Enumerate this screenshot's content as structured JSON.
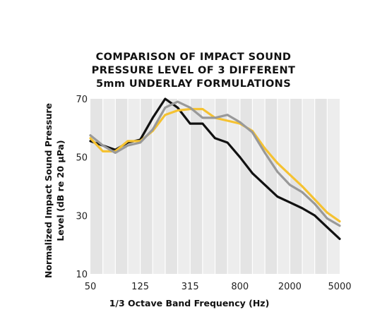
{
  "chart_data": {
    "type": "line",
    "title_lines": [
      "COMPARISON OF IMPACT SOUND",
      "PRESSURE LEVEL OF 3 DIFFERENT",
      "5mm UNDERLAY FORMULATIONS"
    ],
    "xlabel": "1/3 Octave Band Frequency (Hz)",
    "ylabel_lines": [
      "Normalized Impact Sound Pressure",
      "Level (dB re 20 μPa)"
    ],
    "x": [
      50,
      63,
      80,
      100,
      125,
      160,
      200,
      250,
      315,
      400,
      500,
      630,
      800,
      1000,
      1250,
      1600,
      2000,
      2500,
      3150,
      4000,
      5000
    ],
    "x_ticks": [
      "50",
      "125",
      "315",
      "800",
      "2000",
      "5000"
    ],
    "y_ticks": [
      10,
      30,
      50,
      70
    ],
    "ylim": [
      10,
      70
    ],
    "x_scale": "log (1/3 octave bands)",
    "grid": "vertical bands",
    "series": [
      {
        "color": "#111111",
        "values": [
          55.5,
          54,
          52.5,
          55,
          56,
          63.5,
          70,
          67,
          61.5,
          61.5,
          56.5,
          55,
          50,
          44.5,
          40.5,
          36.5,
          34.5,
          32.5,
          30,
          26,
          22
        ]
      },
      {
        "color": "#f5c231",
        "values": [
          56.5,
          52,
          52,
          55.5,
          55.5,
          59,
          64.5,
          66,
          66.5,
          66.5,
          63.5,
          62.5,
          61.5,
          59,
          53,
          48,
          44,
          40,
          35.5,
          31,
          28
        ]
      },
      {
        "color": "#999999",
        "values": [
          57.5,
          54,
          51.5,
          54,
          55,
          59.5,
          67,
          69,
          67,
          63.5,
          63.5,
          64.5,
          62,
          58.5,
          51.5,
          45,
          40.5,
          38,
          34,
          29,
          26.5
        ]
      }
    ]
  }
}
